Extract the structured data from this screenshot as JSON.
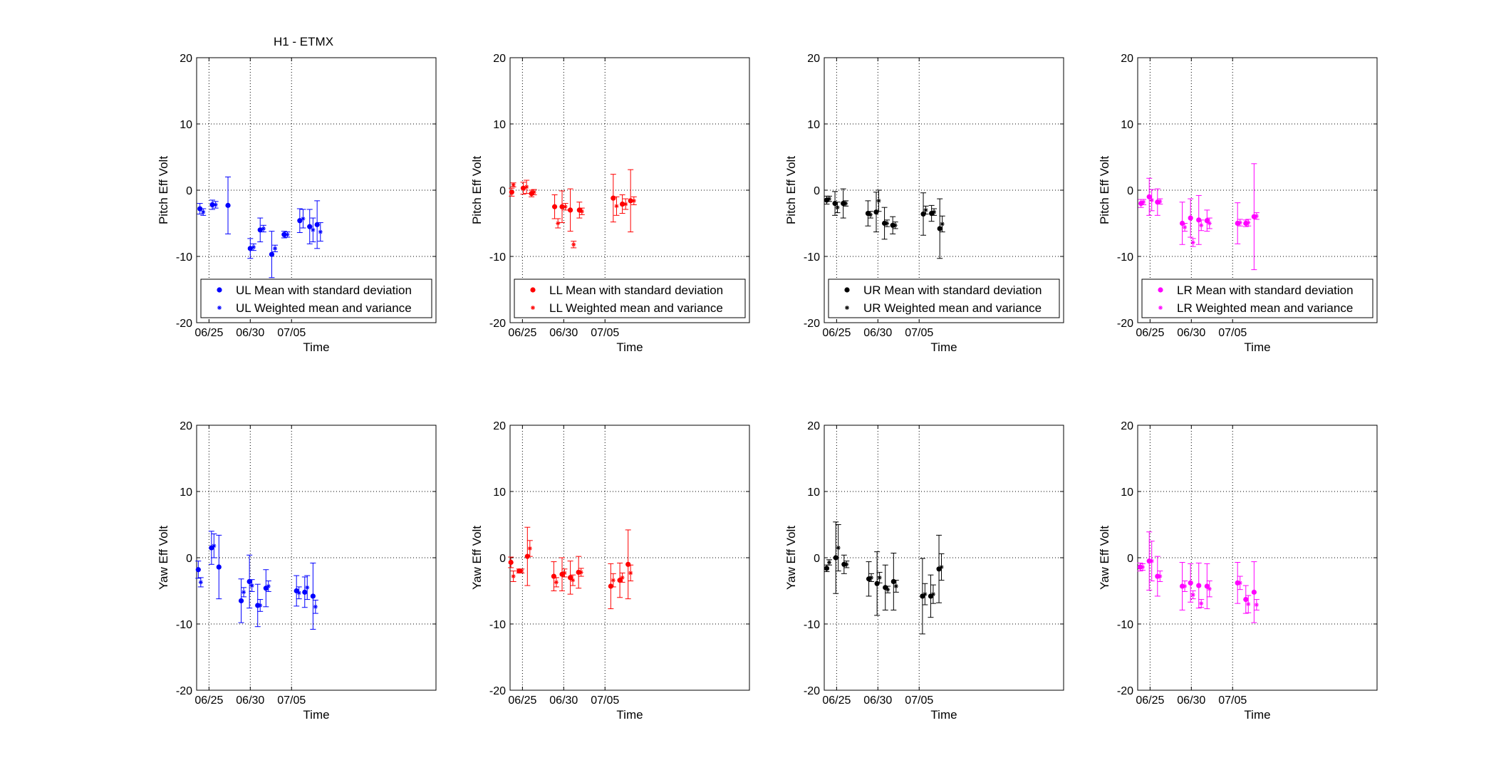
{
  "figure": {
    "title": "H1 - ETMX",
    "axis_color": "#000000",
    "grid_color": "#000000"
  },
  "chart_data": [
    {
      "type": "scatter",
      "channel": "UL",
      "color": "#0000ff",
      "xlabel": "Time",
      "ylabel": "Pitch Eff Volt",
      "xlim": [
        23.5,
        52.5
      ],
      "ylim": [
        -20,
        20
      ],
      "xticks": [
        {
          "value": 25,
          "label": "06/25"
        },
        {
          "value": 30,
          "label": "06/30"
        },
        {
          "value": 35,
          "label": "07/05"
        }
      ],
      "yticks": [
        -20,
        -10,
        0,
        10,
        20
      ],
      "grid": true,
      "legend_position": "bottom",
      "series": [
        {
          "name": "UL Mean with standard deviation",
          "marker": "dot",
          "x": [
            23.9,
            25.4,
            27.3,
            30.0,
            31.2,
            32.6,
            34.1,
            36.0,
            37.2,
            38.1
          ],
          "y": [
            -2.8,
            -2.2,
            -2.3,
            -8.8,
            -6.0,
            -9.7,
            -6.7,
            -4.6,
            -5.5,
            -5.2
          ],
          "err": [
            0.8,
            0.7,
            4.3,
            1.5,
            1.8,
            3.5,
            0.5,
            1.8,
            2.6,
            3.6
          ]
        },
        {
          "name": "UL Weighted mean and variance",
          "marker": "star",
          "x": [
            24.3,
            25.8,
            30.4,
            31.6,
            33.0,
            34.5,
            36.4,
            37.6,
            38.5
          ],
          "y": [
            -3.3,
            -2.2,
            -8.6,
            -5.8,
            -8.8,
            -6.7,
            -4.3,
            -6.0,
            -6.3
          ],
          "err": [
            0.5,
            0.5,
            0.5,
            0.5,
            0.5,
            0.4,
            1.4,
            1.8,
            1.4
          ]
        }
      ]
    },
    {
      "type": "scatter",
      "channel": "LL",
      "color": "#ff0000",
      "xlabel": "Time",
      "ylabel": "Pitch Eff Volt",
      "xlim": [
        23.5,
        52.5
      ],
      "ylim": [
        -20,
        20
      ],
      "xticks": [
        {
          "value": 25,
          "label": "06/25"
        },
        {
          "value": 30,
          "label": "06/30"
        },
        {
          "value": 35,
          "label": "07/05"
        }
      ],
      "yticks": [
        -20,
        -10,
        0,
        10,
        20
      ],
      "grid": true,
      "legend_position": "bottom",
      "series": [
        {
          "name": "LL Mean with standard deviation",
          "marker": "dot",
          "x": [
            23.7,
            25.1,
            26.1,
            28.9,
            29.8,
            30.8,
            31.9,
            36.0,
            37.1,
            38.1
          ],
          "y": [
            -0.3,
            0.3,
            -0.5,
            -2.5,
            -2.5,
            -3.0,
            -3.0,
            -1.2,
            -2.1,
            -1.6
          ],
          "err": [
            0.6,
            0.9,
            0.5,
            1.8,
            2.4,
            3.2,
            1.2,
            3.6,
            1.4,
            4.7
          ]
        },
        {
          "name": "LL Weighted mean and variance",
          "marker": "star",
          "x": [
            23.9,
            25.5,
            26.4,
            29.3,
            30.2,
            31.2,
            32.2,
            36.4,
            37.5,
            38.5
          ],
          "y": [
            0.8,
            0.5,
            -0.3,
            -5.0,
            -2.5,
            -8.2,
            -3.2,
            -2.4,
            -2.1,
            -1.6
          ],
          "err": [
            0.3,
            1.0,
            0.4,
            0.7,
            0.5,
            0.5,
            0.5,
            1.4,
            0.8,
            0.6
          ]
        }
      ]
    },
    {
      "type": "scatter",
      "channel": "UR",
      "color": "#000000",
      "xlabel": "Time",
      "ylabel": "Pitch Eff Volt",
      "xlim": [
        23.5,
        52.5
      ],
      "ylim": [
        -20,
        20
      ],
      "xticks": [
        {
          "value": 25,
          "label": "06/25"
        },
        {
          "value": 30,
          "label": "06/30"
        },
        {
          "value": 35,
          "label": "07/05"
        }
      ],
      "yticks": [
        -20,
        -10,
        0,
        10,
        20
      ],
      "grid": true,
      "legend_position": "bottom",
      "series": [
        {
          "name": "UR Mean with standard deviation",
          "marker": "dot",
          "x": [
            23.8,
            24.8,
            25.8,
            28.8,
            29.8,
            30.8,
            31.8,
            35.5,
            36.5,
            37.5
          ],
          "y": [
            -1.5,
            -2.0,
            -2.0,
            -3.5,
            -3.3,
            -5.0,
            -5.3,
            -3.6,
            -3.5,
            -5.8
          ],
          "err": [
            0.6,
            1.8,
            2.2,
            1.9,
            3.0,
            2.4,
            1.3,
            3.2,
            1.2,
            4.5
          ]
        },
        {
          "name": "UR Weighted mean and variance",
          "marker": "star",
          "x": [
            24.1,
            25.1,
            26.1,
            29.1,
            30.1,
            31.1,
            32.1,
            35.8,
            36.8,
            37.8
          ],
          "y": [
            -1.3,
            -2.6,
            -2.0,
            -3.7,
            -1.6,
            -5.0,
            -5.3,
            -3.0,
            -3.3,
            -5.1
          ],
          "err": [
            0.4,
            0.8,
            0.4,
            0.5,
            1.6,
            0.5,
            0.5,
            0.6,
            0.5,
            1.2
          ]
        }
      ]
    },
    {
      "type": "scatter",
      "channel": "LR",
      "color": "#ff00ff",
      "xlabel": "Time",
      "ylabel": "Pitch Eff Volt",
      "xlim": [
        23.5,
        52.5
      ],
      "ylim": [
        -20,
        20
      ],
      "xticks": [
        {
          "value": 25,
          "label": "06/25"
        },
        {
          "value": 30,
          "label": "06/30"
        },
        {
          "value": 35,
          "label": "07/05"
        }
      ],
      "yticks": [
        -20,
        -10,
        0,
        10,
        20
      ],
      "grid": true,
      "legend_position": "bottom",
      "series": [
        {
          "name": "LR Mean with standard deviation",
          "marker": "dot",
          "x": [
            23.9,
            24.9,
            25.9,
            28.9,
            29.9,
            30.9,
            31.9,
            35.6,
            36.6,
            37.6
          ],
          "y": [
            -2.0,
            -1.0,
            -1.8,
            -5.0,
            -4.2,
            -4.5,
            -4.6,
            -5.0,
            -5.0,
            -4.0
          ],
          "err": [
            0.6,
            2.8,
            2.0,
            3.2,
            2.9,
            3.7,
            1.6,
            3.1,
            0.5,
            8.0
          ]
        },
        {
          "name": "LR Weighted mean and variance",
          "marker": "star",
          "x": [
            24.2,
            25.2,
            26.2,
            29.2,
            30.2,
            31.2,
            32.2,
            35.9,
            36.9,
            37.9
          ],
          "y": [
            -1.8,
            -1.5,
            -1.7,
            -5.6,
            -7.9,
            -5.3,
            -5.0,
            -4.9,
            -4.9,
            -3.9
          ],
          "err": [
            0.4,
            1.6,
            0.4,
            0.6,
            0.6,
            0.8,
            0.8,
            0.5,
            0.5,
            0.5
          ]
        }
      ]
    },
    {
      "type": "scatter",
      "channel": "UL",
      "color": "#0000ff",
      "xlabel": "Time",
      "ylabel": "Yaw Eff Volt",
      "xlim": [
        23.5,
        52.5
      ],
      "ylim": [
        -20,
        20
      ],
      "xticks": [
        {
          "value": 25,
          "label": "06/25"
        },
        {
          "value": 30,
          "label": "06/30"
        },
        {
          "value": 35,
          "label": "07/05"
        }
      ],
      "yticks": [
        -20,
        -10,
        0,
        10,
        20
      ],
      "grid": true,
      "series": [
        {
          "name": "UL Mean with standard deviation",
          "marker": "dot",
          "x": [
            23.7,
            25.3,
            26.2,
            28.9,
            29.9,
            30.9,
            31.9,
            35.6,
            36.6,
            37.6
          ],
          "y": [
            -1.8,
            1.5,
            -1.4,
            -6.5,
            -3.6,
            -7.2,
            -4.6,
            -5.0,
            -5.2,
            -5.8
          ],
          "err": [
            1.3,
            2.5,
            4.8,
            3.3,
            4.0,
            3.2,
            2.8,
            2.3,
            2.3,
            5.0
          ]
        },
        {
          "name": "UL Weighted mean and variance",
          "marker": "star",
          "x": [
            24.0,
            25.6,
            29.2,
            30.2,
            31.2,
            32.2,
            35.9,
            36.9,
            37.9
          ],
          "y": [
            -3.7,
            1.8,
            -5.2,
            -4.2,
            -7.2,
            -4.3,
            -5.3,
            -4.5,
            -7.4
          ],
          "err": [
            0.7,
            1.8,
            0.7,
            0.9,
            0.9,
            0.8,
            0.9,
            1.8,
            1.0
          ]
        }
      ]
    },
    {
      "type": "scatter",
      "channel": "LL",
      "color": "#ff0000",
      "xlabel": "Time",
      "ylabel": "Yaw Eff Volt",
      "xlim": [
        23.5,
        52.5
      ],
      "ylim": [
        -20,
        20
      ],
      "xticks": [
        {
          "value": 25,
          "label": "06/25"
        },
        {
          "value": 30,
          "label": "06/30"
        },
        {
          "value": 35,
          "label": "07/05"
        }
      ],
      "yticks": [
        -20,
        -10,
        0,
        10,
        20
      ],
      "grid": true,
      "series": [
        {
          "name": "LL Mean with standard deviation",
          "marker": "dot",
          "x": [
            23.6,
            24.6,
            25.6,
            28.8,
            29.8,
            30.8,
            31.8,
            35.7,
            36.8,
            37.8
          ],
          "y": [
            -0.7,
            -2.0,
            0.2,
            -2.8,
            -2.5,
            -3.0,
            -2.2,
            -4.3,
            -3.4,
            -1.0
          ],
          "err": [
            0.8,
            0.3,
            4.4,
            2.2,
            2.5,
            2.5,
            2.4,
            3.4,
            2.6,
            5.2
          ]
        },
        {
          "name": "LL Weighted mean and variance",
          "marker": "star",
          "x": [
            23.9,
            24.9,
            25.9,
            29.1,
            30.1,
            31.1,
            32.1,
            36.0,
            37.1,
            38.1
          ],
          "y": [
            -2.8,
            -2.0,
            1.4,
            -3.7,
            -2.3,
            -3.4,
            -2.2,
            -3.4,
            -3.0,
            -2.3
          ],
          "err": [
            0.8,
            0.3,
            1.2,
            0.7,
            0.6,
            0.8,
            0.6,
            1.0,
            0.7,
            1.2
          ]
        }
      ]
    },
    {
      "type": "scatter",
      "channel": "UR",
      "color": "#000000",
      "xlabel": "Time",
      "ylabel": "Yaw Eff Volt",
      "xlim": [
        23.5,
        52.5
      ],
      "ylim": [
        -20,
        20
      ],
      "xticks": [
        {
          "value": 25,
          "label": "06/25"
        },
        {
          "value": 30,
          "label": "06/30"
        },
        {
          "value": 35,
          "label": "07/05"
        }
      ],
      "yticks": [
        -20,
        -10,
        0,
        10,
        20
      ],
      "grid": true,
      "series": [
        {
          "name": "UR Mean with standard deviation",
          "marker": "dot",
          "x": [
            23.8,
            24.9,
            25.9,
            28.9,
            29.9,
            30.9,
            31.9,
            35.4,
            36.4,
            37.4
          ],
          "y": [
            -1.6,
            0.0,
            -1.0,
            -3.2,
            -3.9,
            -4.5,
            -3.6,
            -5.8,
            -5.8,
            -1.7
          ],
          "err": [
            0.5,
            5.4,
            1.4,
            2.6,
            4.8,
            3.4,
            4.3,
            5.7,
            3.2,
            5.1
          ]
        },
        {
          "name": "UR Weighted mean and variance",
          "marker": "star",
          "x": [
            24.1,
            25.2,
            26.2,
            29.2,
            30.2,
            31.2,
            32.2,
            35.7,
            36.7,
            37.7
          ],
          "y": [
            -0.7,
            1.5,
            -1.0,
            -3.0,
            -3.0,
            -4.8,
            -4.3,
            -5.5,
            -5.5,
            -1.4
          ],
          "err": [
            0.4,
            3.5,
            0.5,
            0.6,
            0.8,
            0.5,
            0.9,
            1.6,
            1.4,
            2.0
          ]
        }
      ]
    },
    {
      "type": "scatter",
      "channel": "LR",
      "color": "#ff00ff",
      "xlabel": "Time",
      "ylabel": "Yaw Eff Volt",
      "xlim": [
        23.5,
        52.5
      ],
      "ylim": [
        -20,
        20
      ],
      "xticks": [
        {
          "value": 25,
          "label": "06/25"
        },
        {
          "value": 30,
          "label": "06/30"
        },
        {
          "value": 35,
          "label": "07/05"
        }
      ],
      "yticks": [
        -20,
        -10,
        0,
        10,
        20
      ],
      "grid": true,
      "series": [
        {
          "name": "LR Mean with standard deviation",
          "marker": "dot",
          "x": [
            23.8,
            24.9,
            25.9,
            28.9,
            29.9,
            30.9,
            31.9,
            35.6,
            36.6,
            37.6
          ],
          "y": [
            -1.4,
            -0.5,
            -2.8,
            -4.3,
            -3.8,
            -4.2,
            -4.3,
            -3.8,
            -6.3,
            -5.2
          ],
          "err": [
            0.6,
            4.4,
            3.0,
            3.6,
            2.9,
            3.4,
            3.4,
            3.1,
            2.1,
            4.6
          ]
        },
        {
          "name": "LR Weighted mean and variance",
          "marker": "star",
          "x": [
            24.1,
            25.2,
            26.2,
            29.2,
            30.2,
            31.2,
            32.2,
            35.9,
            36.9,
            37.9
          ],
          "y": [
            -1.4,
            -0.5,
            -2.8,
            -4.3,
            -5.6,
            -6.9,
            -4.7,
            -3.8,
            -7.0,
            -7.1
          ],
          "err": [
            0.5,
            3.0,
            0.8,
            0.8,
            0.6,
            0.6,
            1.2,
            1.0,
            1.3,
            0.8
          ]
        }
      ]
    }
  ]
}
